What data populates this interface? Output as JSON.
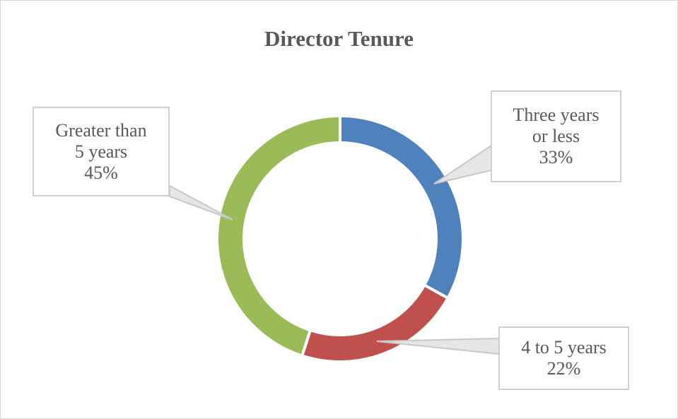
{
  "chart_data": {
    "type": "pie",
    "variant": "doughnut",
    "title": "Director Tenure",
    "slices": [
      {
        "label_lines": [
          "Three years",
          "or less"
        ],
        "percent_label": "33%",
        "value": 33,
        "color": "#4f81bd"
      },
      {
        "label_lines": [
          "4 to 5 years"
        ],
        "percent_label": "22%",
        "value": 22,
        "color": "#c0504d"
      },
      {
        "label_lines": [
          "Greater than",
          "5 years"
        ],
        "percent_label": "45%",
        "value": 45,
        "color": "#9bbb59"
      }
    ],
    "legend": "none"
  }
}
